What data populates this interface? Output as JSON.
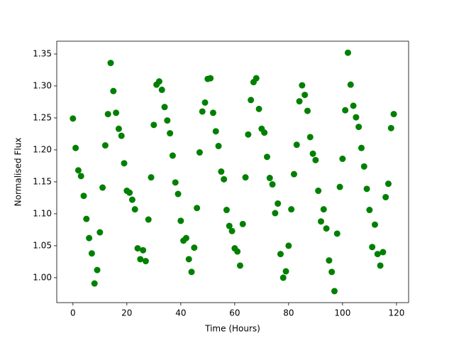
{
  "chart_data": {
    "type": "scatter",
    "xlabel": "Time (Hours)",
    "ylabel": "Normalised Flux",
    "series": [
      {
        "color": "#008000",
        "x": [
          0,
          1,
          2,
          3,
          4,
          5,
          6,
          7,
          8,
          9,
          10,
          11,
          12,
          13,
          14,
          15,
          16,
          17,
          18,
          19,
          20,
          21,
          22,
          23,
          24,
          25,
          26,
          27,
          28,
          29,
          30,
          31,
          32,
          33,
          34,
          35,
          36,
          37,
          38,
          39,
          40,
          41,
          42,
          43,
          44,
          45,
          46,
          47,
          48,
          49,
          50,
          51,
          52,
          53,
          54,
          55,
          56,
          57,
          58,
          59,
          60,
          61,
          62,
          63,
          64,
          65,
          66,
          67,
          68,
          69,
          70,
          71,
          72,
          73,
          74,
          75,
          76,
          77,
          78,
          79,
          80,
          81,
          82,
          83,
          84,
          85,
          86,
          87,
          88,
          89,
          90,
          91,
          92,
          93,
          94,
          95,
          96,
          97,
          98,
          99,
          100,
          101,
          102,
          103,
          104,
          105,
          106,
          107,
          108,
          109,
          110,
          111,
          112,
          113,
          114,
          115,
          116,
          117,
          118,
          119
        ],
        "values": [
          1.249,
          1.203,
          1.168,
          1.159,
          1.128,
          1.092,
          1.062,
          1.038,
          0.991,
          1.012,
          1.071,
          1.141,
          1.207,
          1.256,
          1.336,
          1.292,
          1.258,
          1.233,
          1.222,
          1.179,
          1.136,
          1.133,
          1.122,
          1.107,
          1.046,
          1.029,
          1.043,
          1.026,
          1.091,
          1.157,
          1.239,
          1.302,
          1.307,
          1.294,
          1.267,
          1.246,
          1.226,
          1.191,
          1.149,
          1.131,
          1.089,
          1.058,
          1.062,
          1.029,
          1.009,
          1.047,
          1.109,
          1.196,
          1.26,
          1.274,
          1.311,
          1.312,
          1.258,
          1.229,
          1.206,
          1.166,
          1.154,
          1.106,
          1.081,
          1.073,
          1.046,
          1.041,
          1.019,
          1.084,
          1.157,
          1.224,
          1.278,
          1.306,
          1.312,
          1.264,
          1.233,
          1.227,
          1.189,
          1.156,
          1.146,
          1.101,
          1.116,
          1.037,
          1.0,
          1.01,
          1.05,
          1.107,
          1.162,
          1.208,
          1.276,
          1.301,
          1.286,
          1.261,
          1.22,
          1.194,
          1.184,
          1.136,
          1.088,
          1.107,
          1.077,
          1.027,
          1.009,
          0.979,
          1.069,
          1.142,
          1.186,
          1.262,
          1.352,
          1.302,
          1.269,
          1.251,
          1.236,
          1.203,
          1.174,
          1.139,
          1.106,
          1.048,
          1.083,
          1.037,
          1.019,
          1.04,
          1.126,
          1.147,
          1.234,
          1.256
        ]
      }
    ],
    "xlim": [
      -6,
      124.5
    ],
    "xticks": [
      0,
      20,
      40,
      60,
      80,
      100,
      120
    ],
    "ylim": [
      0.961,
      1.37
    ],
    "yticks": [
      {
        "value": 1.0,
        "label": "1.00"
      },
      {
        "value": 1.05,
        "label": "1.05"
      },
      {
        "value": 1.1,
        "label": "1.10"
      },
      {
        "value": 1.15,
        "label": "1.15"
      },
      {
        "value": 1.2,
        "label": "1.20"
      },
      {
        "value": 1.25,
        "label": "1.25"
      },
      {
        "value": 1.3,
        "label": "1.30"
      },
      {
        "value": 1.35,
        "label": "1.35"
      }
    ],
    "grid": false
  }
}
